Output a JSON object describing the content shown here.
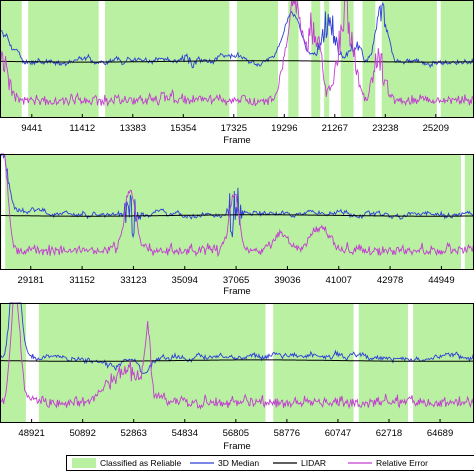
{
  "chart_data": [
    {
      "type": "line",
      "xlabel": "Frame",
      "ticks": [
        "9441",
        "11412",
        "13383",
        "15354",
        "17325",
        "19296",
        "21267",
        "23238",
        "25209"
      ],
      "x_range": [
        8200,
        26700
      ],
      "reliable_gaps": [
        [
          9050,
          9300
        ],
        [
          12050,
          12300
        ],
        [
          17150,
          17450
        ],
        [
          19050,
          19450
        ],
        [
          19850,
          20350
        ],
        [
          20700,
          20850
        ],
        [
          21050,
          21500
        ],
        [
          22000,
          22350
        ],
        [
          22850,
          23100
        ],
        [
          25250,
          25400
        ]
      ],
      "series": [
        {
          "name": "3D Median",
          "color": "#2f3fd6",
          "kind": "median",
          "base": 0.52,
          "noise": 0.025,
          "events": [
            [
              8200,
              0.3,
              0.25,
              600
            ],
            [
              15600,
              -0.06,
              0.04,
              400
            ],
            [
              17300,
              0.06,
              0.06,
              450
            ],
            [
              19600,
              0.42,
              0.42,
              500
            ],
            [
              21000,
              0.2,
              0.5,
              350
            ],
            [
              22100,
              0.08,
              0.2,
              300
            ],
            [
              23100,
              0.35,
              0.55,
              300
            ]
          ]
        },
        {
          "name": "LIDAR",
          "color": "#000000",
          "kind": "lidar",
          "base": 0.52
        },
        {
          "name": "Relative Error",
          "color": "#c23fd0",
          "kind": "error",
          "base": 0.9,
          "noise": 0.05,
          "events": [
            [
              8200,
              0.2,
              0.5,
              400
            ],
            [
              19700,
              0.75,
              0.95,
              450
            ],
            [
              20500,
              0.35,
              0.9,
              300
            ],
            [
              21700,
              0.5,
              0.95,
              400
            ],
            [
              23000,
              0.2,
              0.5,
              300
            ]
          ]
        }
      ]
    },
    {
      "type": "line",
      "xlabel": "Frame",
      "ticks": [
        "29181",
        "31152",
        "33123",
        "35094",
        "37065",
        "39036",
        "41007",
        "42978",
        "44949"
      ],
      "x_range": [
        28000,
        46200
      ],
      "reliable_gaps": [
        [
          28050,
          28200
        ],
        [
          45700,
          45850
        ]
      ],
      "series": [
        {
          "name": "3D Median",
          "color": "#2f3fd6",
          "kind": "median",
          "base": 0.52,
          "noise": 0.025,
          "events": [
            [
              33000,
              -0.2,
              0.3,
              250
            ],
            [
              37000,
              -0.28,
              0.35,
              220
            ],
            [
              28100,
              0.6,
              0.45,
              300
            ]
          ]
        },
        {
          "name": "LIDAR",
          "color": "#000000",
          "kind": "lidar",
          "base": 0.53
        },
        {
          "name": "Relative Error",
          "color": "#c23fd0",
          "kind": "error",
          "base": 0.88,
          "noise": 0.05,
          "events": [
            [
              28100,
              0.9,
              0.95,
              250
            ],
            [
              33000,
              0.5,
              0.5,
              300
            ],
            [
              37000,
              0.5,
              0.5,
              250
            ],
            [
              38800,
              0.15,
              0.15,
              400
            ],
            [
              40300,
              0.2,
              0.2,
              500
            ]
          ]
        }
      ]
    },
    {
      "type": "line",
      "xlabel": "Frame",
      "ticks": [
        "48921",
        "50892",
        "52863",
        "54834",
        "56805",
        "58776",
        "60747",
        "62718",
        "64689"
      ],
      "x_range": [
        47700,
        66000
      ],
      "reliable_gaps": [
        [
          48700,
          49200
        ],
        [
          57950,
          58250
        ],
        [
          61350,
          61550
        ],
        [
          63450,
          63650
        ]
      ],
      "series": [
        {
          "name": "3D Median",
          "color": "#2f3fd6",
          "kind": "median",
          "base": 0.45,
          "noise": 0.025,
          "events": [
            [
              48300,
              0.9,
              1.0,
              250
            ],
            [
              51900,
              -0.06,
              -0.06,
              900
            ],
            [
              53300,
              -0.16,
              -0.16,
              300
            ]
          ]
        },
        {
          "name": "LIDAR",
          "color": "#000000",
          "kind": "lidar",
          "base": 0.48
        },
        {
          "name": "Relative Error",
          "color": "#c23fd0",
          "kind": "error",
          "base": 0.88,
          "noise": 0.05,
          "events": [
            [
              48300,
              0.9,
              1.0,
              250
            ],
            [
              52500,
              0.2,
              0.35,
              900
            ],
            [
              53400,
              0.5,
              0.6,
              150
            ]
          ]
        }
      ]
    }
  ],
  "legend": {
    "items": [
      {
        "label": "Classified as Reliable",
        "kind": "patch",
        "color": "#b9f0a1"
      },
      {
        "label": "3D Median",
        "kind": "line",
        "color": "#2f3fd6"
      },
      {
        "label": "LIDAR",
        "kind": "line",
        "color": "#000000"
      },
      {
        "label": "Relative Error",
        "kind": "line",
        "color": "#c23fd0"
      }
    ]
  },
  "colors": {
    "reliable": "#b9f0a1",
    "median": "#2f3fd6",
    "lidar": "#000000",
    "error": "#c23fd0"
  }
}
